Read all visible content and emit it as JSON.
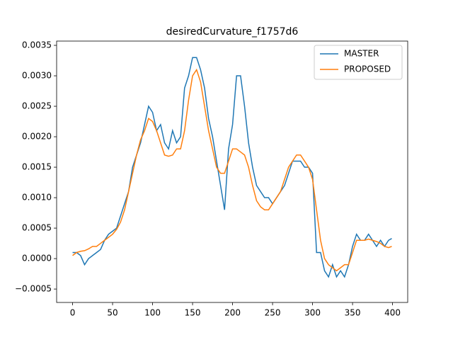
{
  "chart_data": {
    "type": "line",
    "title": "desiredCurvature_f1757d6",
    "x": [
      0,
      5,
      10,
      15,
      20,
      25,
      30,
      35,
      40,
      45,
      50,
      55,
      60,
      65,
      70,
      75,
      80,
      85,
      90,
      95,
      100,
      105,
      110,
      115,
      120,
      125,
      130,
      135,
      140,
      145,
      150,
      155,
      160,
      165,
      170,
      175,
      180,
      185,
      190,
      195,
      200,
      205,
      210,
      215,
      220,
      225,
      230,
      235,
      240,
      245,
      250,
      255,
      260,
      265,
      270,
      275,
      280,
      285,
      290,
      295,
      300,
      305,
      310,
      315,
      320,
      325,
      330,
      335,
      340,
      345,
      350,
      355,
      360,
      365,
      370,
      375,
      380,
      385,
      390,
      395,
      399
    ],
    "series": [
      {
        "name": "MASTER",
        "color": "#1f77b4",
        "values": [
          0.0001,
          0.0001,
          5e-05,
          -0.0001,
          0.0,
          5e-05,
          0.0001,
          0.00015,
          0.0003,
          0.0004,
          0.00045,
          0.0005,
          0.0007,
          0.0009,
          0.0011,
          0.0015,
          0.0017,
          0.0019,
          0.0022,
          0.0025,
          0.0024,
          0.0021,
          0.0022,
          0.0019,
          0.0018,
          0.0021,
          0.0019,
          0.002,
          0.0028,
          0.003,
          0.0033,
          0.0033,
          0.0031,
          0.0028,
          0.0023,
          0.002,
          0.0016,
          0.0012,
          0.0008,
          0.0018,
          0.0022,
          0.003,
          0.003,
          0.0025,
          0.0019,
          0.0015,
          0.0012,
          0.0011,
          0.001,
          0.001,
          0.0009,
          0.001,
          0.0011,
          0.0012,
          0.0014,
          0.0016,
          0.0016,
          0.0016,
          0.0015,
          0.0015,
          0.0014,
          0.0001,
          0.0001,
          -0.0002,
          -0.0003,
          -0.0001,
          -0.0003,
          -0.0002,
          -0.0003,
          -0.0001,
          0.0002,
          0.0004,
          0.0003,
          0.0003,
          0.0004,
          0.0003,
          0.0002,
          0.0003,
          0.0002,
          0.0003,
          0.00033
        ]
      },
      {
        "name": "PROPOSED",
        "color": "#ff7f0e",
        "values": [
          5e-05,
          0.0001,
          0.00012,
          0.00013,
          0.00016,
          0.0002,
          0.0002,
          0.00025,
          0.0003,
          0.00035,
          0.0004,
          0.00048,
          0.0006,
          0.0008,
          0.0011,
          0.0014,
          0.0017,
          0.00195,
          0.0021,
          0.0023,
          0.00225,
          0.0021,
          0.0019,
          0.0017,
          0.00168,
          0.0017,
          0.0018,
          0.0018,
          0.0021,
          0.0026,
          0.003,
          0.0031,
          0.0029,
          0.0025,
          0.0021,
          0.0018,
          0.0015,
          0.0014,
          0.0014,
          0.0016,
          0.0018,
          0.0018,
          0.00175,
          0.0017,
          0.0015,
          0.0012,
          0.00095,
          0.00085,
          0.0008,
          0.0008,
          0.0009,
          0.001,
          0.0011,
          0.0013,
          0.0015,
          0.0016,
          0.0017,
          0.0017,
          0.0016,
          0.0015,
          0.0013,
          0.0008,
          0.0003,
          0.0,
          -0.0001,
          -0.00015,
          -0.0002,
          -0.00015,
          -0.0001,
          -0.0001,
          0.0001,
          0.0003,
          0.0003,
          0.0003,
          0.00032,
          0.0003,
          0.00028,
          0.00025,
          0.0002,
          0.00018,
          0.0002
        ]
      }
    ],
    "xlim": [
      -19.95,
      418.95
    ],
    "xticks": [
      0,
      50,
      100,
      150,
      200,
      250,
      300,
      350,
      400
    ],
    "ylim": [
      -0.00072,
      0.00357
    ],
    "yticks": [
      {
        "value": -0.0005,
        "label": "−0.0005"
      },
      {
        "value": 0,
        "label": "0.0000"
      },
      {
        "value": 0.0005,
        "label": "0.0005"
      },
      {
        "value": 0.001,
        "label": "0.0010"
      },
      {
        "value": 0.0015,
        "label": "0.0015"
      },
      {
        "value": 0.002,
        "label": "0.0020"
      },
      {
        "value": 0.0025,
        "label": "0.0025"
      },
      {
        "value": 0.003,
        "label": "0.0030"
      },
      {
        "value": 0.0035,
        "label": "0.0035"
      }
    ],
    "legend": "upper right"
  }
}
